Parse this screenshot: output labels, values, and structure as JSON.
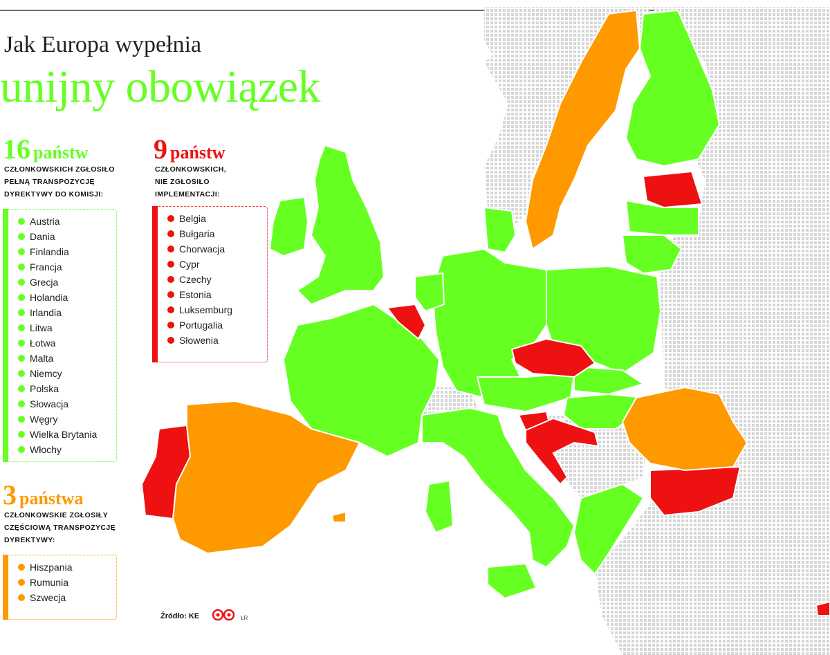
{
  "title": {
    "line1": "Jak Europa wypełnia",
    "line2": "unijny obowiązek"
  },
  "colors": {
    "full": "#66ff22",
    "none": "#ee1111",
    "partial": "#ff9900",
    "non_eu": "#dcdcdc"
  },
  "groups": {
    "full": {
      "count": "16",
      "word": "państw",
      "desc": "członkowskich zgłosiło\npełną transpozycję\ndyrektywy do Komisji:",
      "countries": [
        "Austria",
        "Dania",
        "Finlandia",
        "Francja",
        "Grecja",
        "Holandia",
        "Irlandia",
        "Litwa",
        "Łotwa",
        "Malta",
        "Niemcy",
        "Polska",
        "Słowacja",
        "Węgry",
        "Wielka Brytania",
        "Włochy"
      ]
    },
    "none": {
      "count": "9",
      "word": "państw",
      "desc": "członkowskich,\nnie zgłosiło\nimplementacji:",
      "countries": [
        "Belgia",
        "Bułgaria",
        "Chorwacja",
        "Cypr",
        "Czechy",
        "Estonia",
        "Luksemburg",
        "Portugalia",
        "Słowenia"
      ]
    },
    "partial": {
      "count": "3",
      "word": "państwa",
      "desc": "członkowskie zgłosiły\nczęściową transpozycję\ndyrektywy:",
      "countries": [
        "Hiszpania",
        "Rumunia",
        "Szwecja"
      ]
    }
  },
  "source": {
    "label": "Źródło: KE",
    "logo_icon": "eu-logo-icon",
    "tag": "ŁR"
  }
}
